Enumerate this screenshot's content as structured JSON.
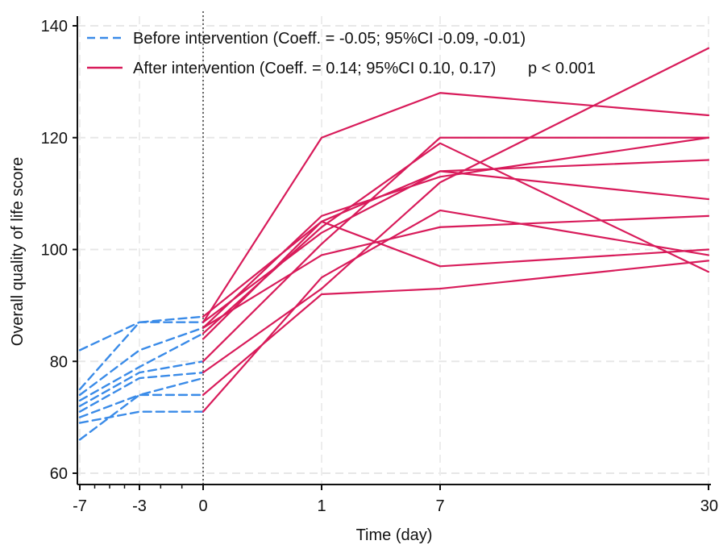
{
  "chart_data": {
    "type": "line",
    "title": "",
    "xlabel": "Time (day)",
    "ylabel": "Overall quality of life score",
    "ylim": [
      60,
      140
    ],
    "grid": true,
    "x_ticks": [
      {
        "label": "-7",
        "value": -7
      },
      {
        "label": "-3",
        "value": -3
      },
      {
        "label": "0",
        "value": 0
      },
      {
        "label": "1",
        "value": 1
      },
      {
        "label": "7",
        "value": 7
      },
      {
        "label": "30",
        "value": 30
      }
    ],
    "y_ticks": [
      60,
      80,
      100,
      120,
      140
    ],
    "legend": {
      "placement": "top-left",
      "entries": [
        {
          "label": "Before intervention (Coeff. = -0.05; 95%CI -0.09, -0.01)",
          "style": "dashed",
          "color": "#3a8be8"
        },
        {
          "label": "After intervention (Coeff. = 0.14; 95%CI 0.10, 0.17)",
          "style": "solid",
          "color": "#d81b5a"
        }
      ],
      "annotation": "p < 0.001"
    },
    "reference_line": {
      "x": 0,
      "style": "dotted"
    },
    "series": [
      {
        "group": "before",
        "x": [
          -7,
          -3,
          0
        ],
        "y": [
          82,
          87,
          87
        ]
      },
      {
        "group": "before",
        "x": [
          -7,
          -3,
          0
        ],
        "y": [
          75,
          87,
          88
        ]
      },
      {
        "group": "before",
        "x": [
          -7,
          -3,
          0
        ],
        "y": [
          74,
          82,
          86
        ]
      },
      {
        "group": "before",
        "x": [
          -7,
          -3,
          0
        ],
        "y": [
          73,
          79,
          85
        ]
      },
      {
        "group": "before",
        "x": [
          -7,
          -3,
          0
        ],
        "y": [
          72,
          78,
          80
        ]
      },
      {
        "group": "before",
        "x": [
          -7,
          -3,
          0
        ],
        "y": [
          71,
          77,
          78
        ]
      },
      {
        "group": "before",
        "x": [
          -7,
          -3,
          0
        ],
        "y": [
          70,
          74,
          74
        ]
      },
      {
        "group": "before",
        "x": [
          -7,
          -3,
          0
        ],
        "y": [
          69,
          71,
          71
        ]
      },
      {
        "group": "before",
        "x": [
          -7,
          -3,
          0
        ],
        "y": [
          66,
          74,
          77
        ]
      },
      {
        "group": "after",
        "x": [
          0,
          1,
          7,
          30
        ],
        "y": [
          87,
          120,
          128,
          124
        ]
      },
      {
        "group": "after",
        "x": [
          0,
          1,
          7,
          30
        ],
        "y": [
          86,
          106,
          113,
          120
        ]
      },
      {
        "group": "after",
        "x": [
          0,
          1,
          7,
          30
        ],
        "y": [
          88,
          105,
          114,
          109
        ]
      },
      {
        "group": "after",
        "x": [
          0,
          1,
          7,
          30
        ],
        "y": [
          85,
          104,
          119,
          96
        ]
      },
      {
        "group": "after",
        "x": [
          0,
          1,
          7,
          30
        ],
        "y": [
          80,
          101,
          120,
          120
        ]
      },
      {
        "group": "after",
        "x": [
          0,
          1,
          7,
          30
        ],
        "y": [
          86,
          99,
          104,
          106
        ]
      },
      {
        "group": "after",
        "x": [
          0,
          1,
          7,
          30
        ],
        "y": [
          87,
          103,
          114,
          116
        ]
      },
      {
        "group": "after",
        "x": [
          0,
          1,
          7,
          30
        ],
        "y": [
          74,
          92,
          93,
          98
        ]
      },
      {
        "group": "after",
        "x": [
          0,
          1,
          7,
          30
        ],
        "y": [
          78,
          93,
          112,
          136
        ]
      },
      {
        "group": "after",
        "x": [
          0,
          1,
          7,
          30
        ],
        "y": [
          71,
          95,
          107,
          99
        ]
      },
      {
        "group": "after",
        "x": [
          0,
          1,
          7,
          30
        ],
        "y": [
          84,
          105,
          97,
          100
        ]
      }
    ]
  }
}
